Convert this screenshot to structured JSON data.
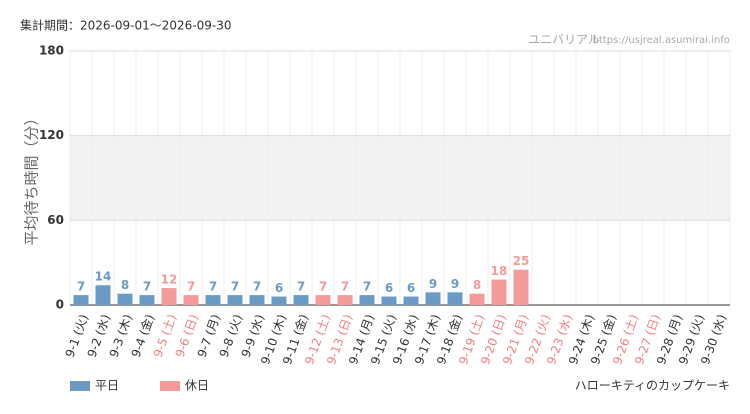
{
  "chart_data": {
    "type": "bar",
    "period": "集計期間：2026-09-01〜2026-09-30",
    "source": "ユニバリアル",
    "url": "https://usjreal.asumirai.info",
    "y_label": "平均待ち時間（分）",
    "footer": "ハローキティのカップケーキ",
    "categories": [
      "9-1 (火)",
      "9-2 (水)",
      "9-3 (木)",
      "9-4 (金)",
      "9-5 (土)",
      "9-6 (日)",
      "9-7 (月)",
      "9-8 (火)",
      "9-9 (水)",
      "9-10 (木)",
      "9-11 (金)",
      "9-12 (土)",
      "9-13 (日)",
      "9-14 (月)",
      "9-15 (火)",
      "9-16 (水)",
      "9-17 (木)",
      "9-18 (金)",
      "9-19 (土)",
      "9-20 (日)",
      "9-21 (月)",
      "9-22 (火)",
      "9-23 (水)",
      "9-24 (木)",
      "9-25 (金)",
      "9-26 (土)",
      "9-27 (日)",
      "9-28 (月)",
      "9-29 (火)",
      "9-30 (水)"
    ],
    "category_colors": [
      "#333",
      "#333",
      "#333",
      "#333",
      "#f08080",
      "#f08080",
      "#333",
      "#333",
      "#333",
      "#333",
      "#333",
      "#f08080",
      "#f08080",
      "#333",
      "#333",
      "#333",
      "#333",
      "#333",
      "#f08080",
      "#f08080",
      "#f08080",
      "#f08080",
      "#f08080",
      "#333",
      "#333",
      "#f08080",
      "#f08080",
      "#333",
      "#333",
      "#333"
    ],
    "series": [
      {
        "name": "平日",
        "color": "#6b9ac4",
        "values": [
          7,
          14,
          8,
          7,
          null,
          null,
          7,
          7,
          7,
          6,
          7,
          null,
          null,
          7,
          6,
          6,
          9,
          9,
          null,
          null,
          null,
          null,
          null,
          null,
          null,
          null,
          null,
          null,
          null,
          null
        ]
      },
      {
        "name": "休日",
        "color": "#f59a9a",
        "values": [
          null,
          null,
          null,
          null,
          12,
          7,
          null,
          null,
          null,
          null,
          null,
          7,
          7,
          null,
          null,
          null,
          null,
          null,
          8,
          18,
          25,
          null,
          null,
          null,
          null,
          null,
          null,
          null,
          null,
          null
        ]
      }
    ],
    "ylim": [
      0,
      180
    ],
    "yticks": [
      0,
      60,
      120,
      180
    ],
    "grid": true
  }
}
